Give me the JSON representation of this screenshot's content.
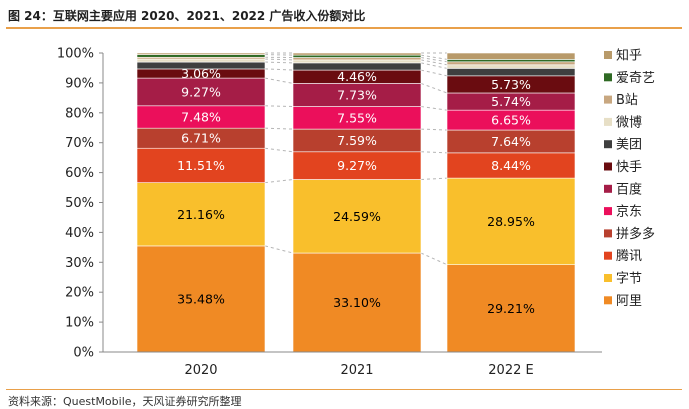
{
  "figure_title": "图 24：互联网主要应用 2020、2021、2022 广告收入份额对比",
  "source": "资料来源：QuestMobile，天风证券研究所整理",
  "chart_data": {
    "type": "bar",
    "stacked": true,
    "normalized": true,
    "categories": [
      "2020",
      "2021",
      "2022 E"
    ],
    "ylim": [
      0,
      100
    ],
    "y_ticks": [
      "0%",
      "10%",
      "20%",
      "30%",
      "40%",
      "50%",
      "60%",
      "70%",
      "80%",
      "90%",
      "100%"
    ],
    "grid": false,
    "connector_lines": true,
    "legend_position": "right",
    "series": [
      {
        "name": "阿里",
        "color": "#f08a24",
        "values": [
          35.48,
          33.1,
          29.21
        ],
        "labels": [
          "35.48%",
          "33.10%",
          "29.21%"
        ],
        "label_color": "#000000"
      },
      {
        "name": "字节",
        "color": "#f9bf2c",
        "values": [
          21.16,
          24.59,
          28.95
        ],
        "labels": [
          "21.16%",
          "24.59%",
          "28.95%"
        ],
        "label_color": "#000000"
      },
      {
        "name": "腾讯",
        "color": "#e2441f",
        "values": [
          11.51,
          9.27,
          8.44
        ],
        "labels": [
          "11.51%",
          "9.27%",
          "8.44%"
        ],
        "label_color": "#ffffff"
      },
      {
        "name": "拼多多",
        "color": "#b8402e",
        "values": [
          6.71,
          7.59,
          7.64
        ],
        "labels": [
          "6.71%",
          "7.59%",
          "7.64%"
        ],
        "label_color": "#ffffff"
      },
      {
        "name": "京东",
        "color": "#eb0f5b",
        "values": [
          7.48,
          7.55,
          6.65
        ],
        "labels": [
          "7.48%",
          "7.55%",
          "6.65%"
        ],
        "label_color": "#ffffff"
      },
      {
        "name": "百度",
        "color": "#a51d47",
        "values": [
          9.27,
          7.73,
          5.74
        ],
        "labels": [
          "9.27%",
          "7.73%",
          "5.74%"
        ],
        "label_color": "#ffffff"
      },
      {
        "name": "快手",
        "color": "#6a0c10",
        "values": [
          3.06,
          4.46,
          5.73
        ],
        "labels": [
          "3.06%",
          "4.46%",
          "5.73%"
        ],
        "label_color": "#ffffff"
      },
      {
        "name": "美团",
        "color": "#3f3f3f",
        "values": [
          2.3,
          2.4,
          2.5
        ],
        "labels": [
          "",
          "",
          ""
        ],
        "label_color": "#ffffff"
      },
      {
        "name": "微博",
        "color": "#e7dfc6",
        "values": [
          1.0,
          1.0,
          1.2
        ],
        "labels": [
          "",
          "",
          ""
        ],
        "label_color": "#000000"
      },
      {
        "name": "B站",
        "color": "#c8a780",
        "values": [
          0.6,
          0.8,
          1.0
        ],
        "labels": [
          "",
          "",
          ""
        ],
        "label_color": "#000000"
      },
      {
        "name": "爱奇艺",
        "color": "#2f6a24",
        "values": [
          0.9,
          0.8,
          0.8
        ],
        "labels": [
          "",
          "",
          ""
        ],
        "label_color": "#000000"
      },
      {
        "name": "知乎",
        "color": "#b89a6a",
        "values": [
          0.53,
          0.71,
          2.14
        ],
        "labels": [
          "",
          "",
          ""
        ],
        "label_color": "#000000"
      }
    ]
  }
}
